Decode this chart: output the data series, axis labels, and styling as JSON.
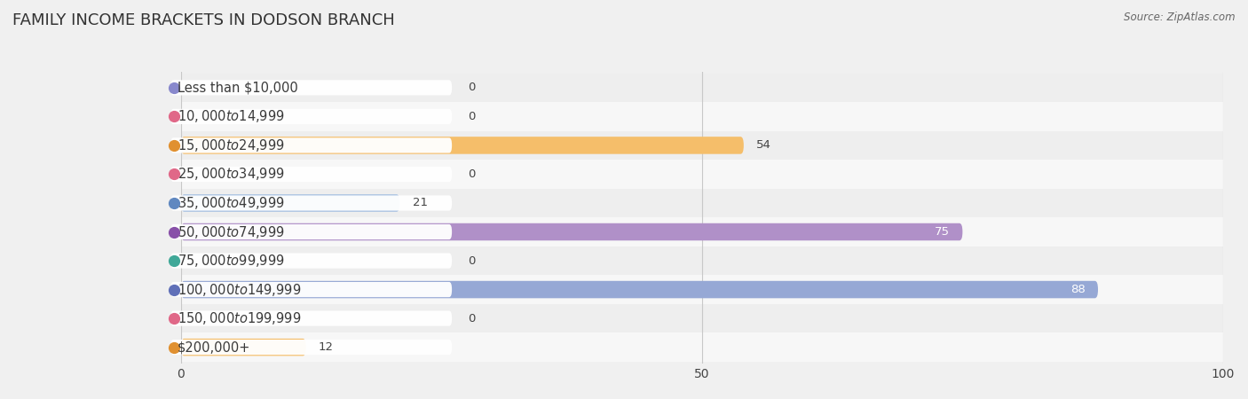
{
  "title": "FAMILY INCOME BRACKETS IN DODSON BRANCH",
  "source": "Source: ZipAtlas.com",
  "categories": [
    "Less than $10,000",
    "$10,000 to $14,999",
    "$15,000 to $24,999",
    "$25,000 to $34,999",
    "$35,000 to $49,999",
    "$50,000 to $74,999",
    "$75,000 to $99,999",
    "$100,000 to $149,999",
    "$150,000 to $199,999",
    "$200,000+"
  ],
  "values": [
    0,
    0,
    54,
    0,
    21,
    75,
    0,
    88,
    0,
    12
  ],
  "bar_colors": [
    "#b0aada",
    "#f2a0b5",
    "#f5be6a",
    "#f2a0b5",
    "#a0bce0",
    "#b090c8",
    "#70c8be",
    "#96a8d5",
    "#f2a0b5",
    "#f5be6a"
  ],
  "dot_colors": [
    "#8888cc",
    "#e06888",
    "#e09030",
    "#e06888",
    "#6088c0",
    "#8850a8",
    "#40a898",
    "#6070b8",
    "#e06888",
    "#e09030"
  ],
  "row_colors": [
    "#eeeeee",
    "#f7f7f7"
  ],
  "xlim": [
    0,
    100
  ],
  "xticks": [
    0,
    50,
    100
  ],
  "background_color": "#f0f0f0",
  "title_fontsize": 13,
  "label_fontsize": 10.5,
  "value_fontsize": 9.5,
  "bar_height": 0.6
}
